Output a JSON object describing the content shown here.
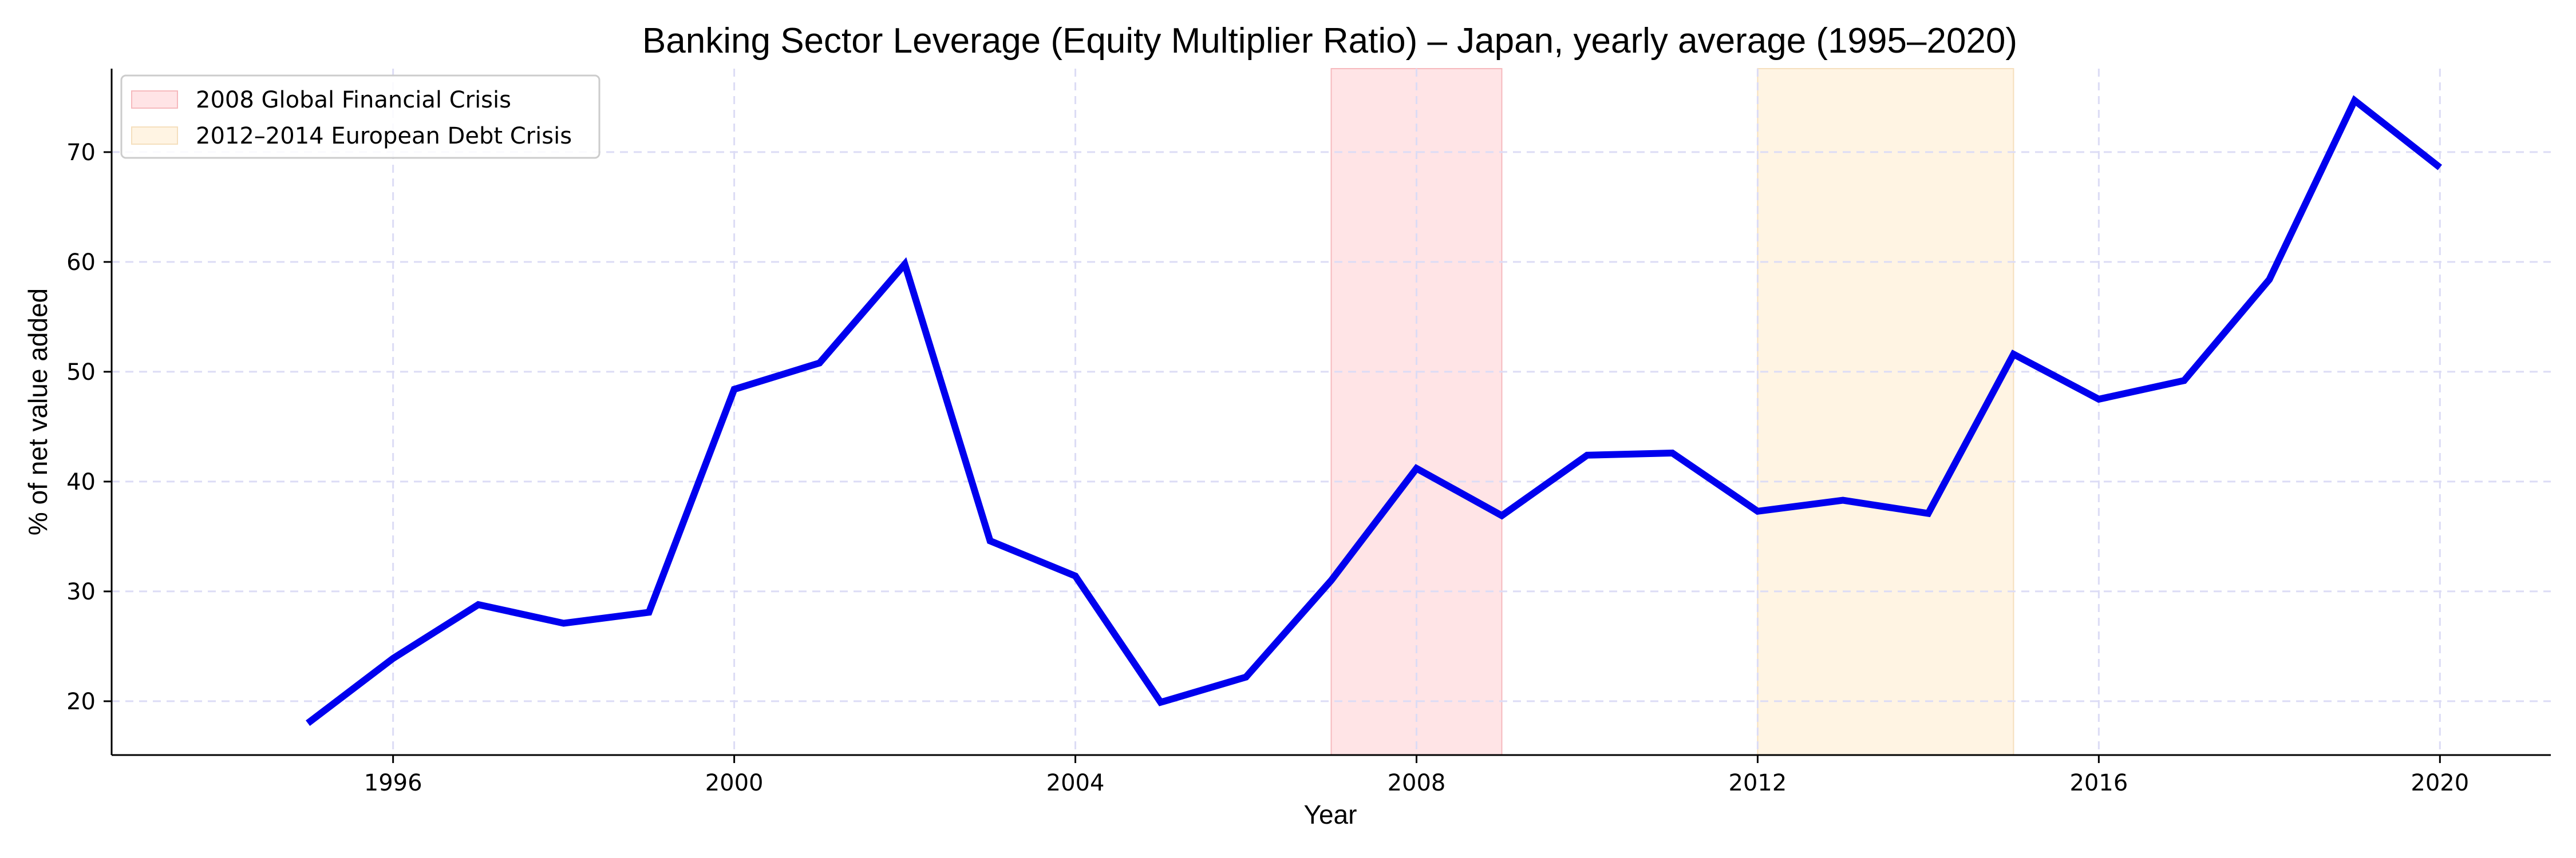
{
  "chart_data": {
    "type": "line",
    "title": "Banking Sector Leverage (Equity Multiplier Ratio) – Japan, yearly average (1995–2020)",
    "xlabel": "Year",
    "ylabel": "% of net value added",
    "xlim": [
      1992.7,
      2021.3
    ],
    "ylim": [
      15.1,
      77.6
    ],
    "x_ticks": [
      1996,
      2000,
      2004,
      2008,
      2012,
      2016,
      2020
    ],
    "y_ticks": [
      20,
      30,
      40,
      50,
      60,
      70
    ],
    "grid": true,
    "legend_position": "top-left",
    "series": [
      {
        "color": "#0000ee",
        "x": [
          1995,
          1996,
          1997,
          1998,
          1999,
          2000,
          2001,
          2002,
          2003,
          2004,
          2005,
          2006,
          2007,
          2008,
          2009,
          2010,
          2011,
          2012,
          2013,
          2014,
          2015,
          2016,
          2017,
          2018,
          2019,
          2020
        ],
        "values": [
          18.0,
          23.9,
          28.8,
          27.1,
          28.1,
          48.4,
          50.8,
          59.8,
          34.6,
          31.4,
          19.9,
          22.2,
          31.0,
          41.2,
          36.9,
          42.4,
          42.6,
          37.3,
          38.3,
          37.1,
          51.6,
          47.5,
          49.2,
          58.4,
          74.7,
          68.6
        ]
      }
    ],
    "shaded_regions": [
      {
        "label": "2008 Global Financial Crisis",
        "x_start": 2007,
        "x_end": 2009,
        "color": "#ffe4e6",
        "edge": "#f6b9bd"
      },
      {
        "label": "2012–2014 European Debt Crisis",
        "x_start": 2012,
        "x_end": 2015,
        "color": "#fff4e3",
        "edge": "#f5dfbd"
      }
    ]
  }
}
